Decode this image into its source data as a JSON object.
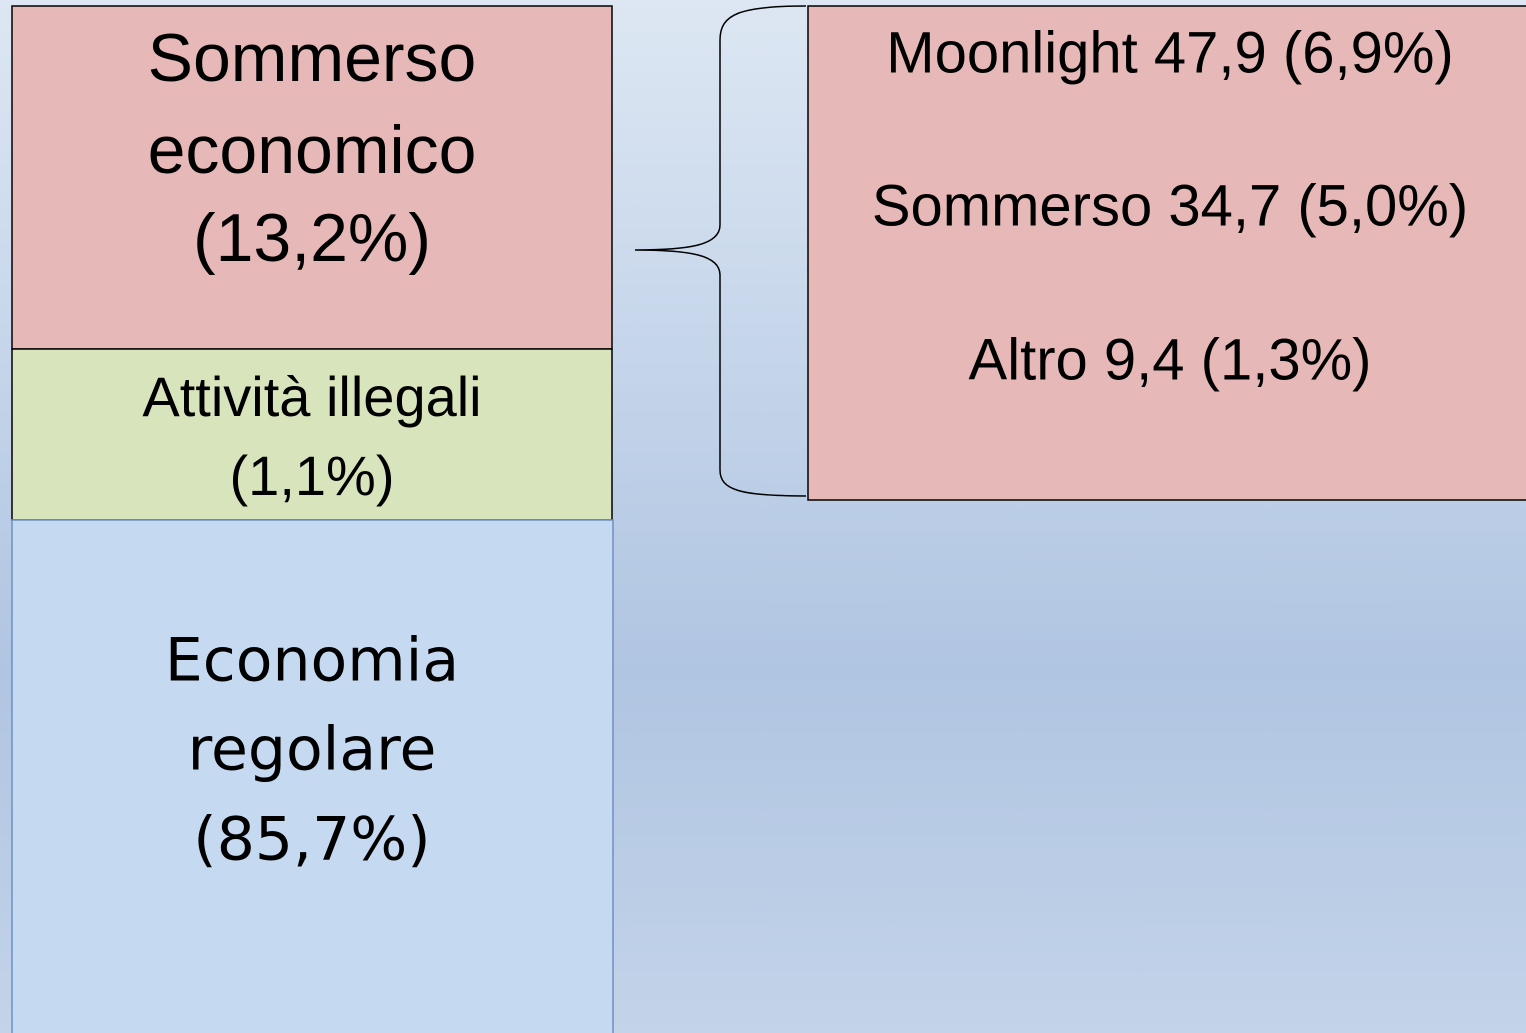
{
  "boxes": [
    {
      "lines": [
        "Sommerso",
        "economico",
        "(13,2%)"
      ]
    },
    {
      "lines": [
        "Attività illegali",
        "(1,1%)"
      ]
    },
    {
      "lines": [
        "Economia",
        "regolare",
        "(85,7%)"
      ]
    }
  ],
  "breakdown": {
    "lines": [
      "Moonlight 47,9 (6,9%)",
      "Sommerso 34,7 (5,0%)",
      "Altro 9,4 (1,3%)"
    ]
  }
}
